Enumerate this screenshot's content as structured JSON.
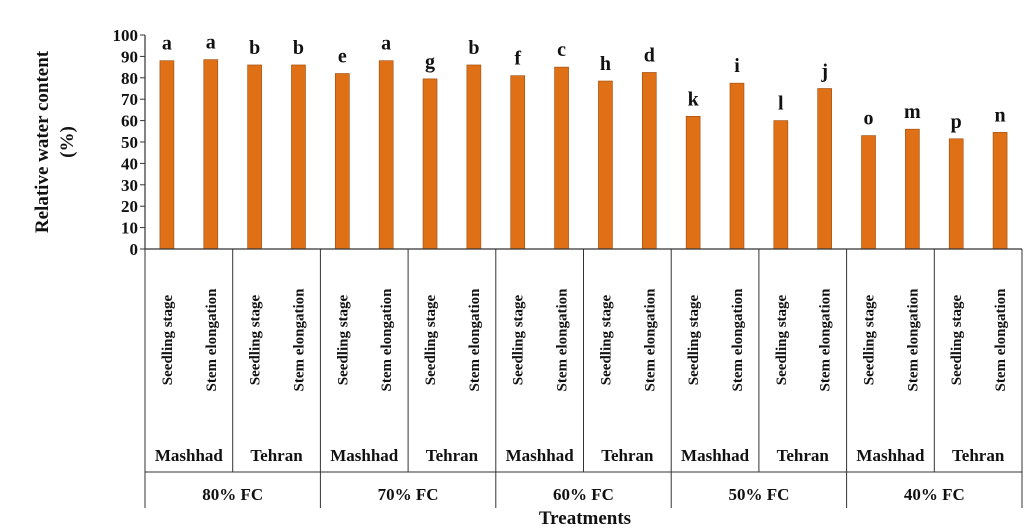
{
  "chart_data": {
    "type": "bar",
    "title": "",
    "ylabel": "Relative water content (%)",
    "xlabel": "Treatments",
    "ylim": [
      0,
      100
    ],
    "yticks": [
      0,
      10,
      20,
      30,
      40,
      50,
      60,
      70,
      80,
      90,
      100
    ],
    "grid": false,
    "legend": "none",
    "bar_color": "#e07016",
    "fc_levels": [
      "80% FC",
      "70% FC",
      "60% FC",
      "50% FC",
      "40% FC"
    ],
    "locations": [
      "Mashhad",
      "Tehran"
    ],
    "stages": [
      "Seedling stage",
      "Stem elongation"
    ],
    "values": [
      88,
      88.5,
      86,
      86,
      82,
      88,
      79.5,
      86,
      81,
      85,
      78.5,
      82.5,
      62,
      77.5,
      60,
      75,
      53,
      56,
      51.5,
      54.5
    ],
    "significance": [
      "a",
      "a",
      "b",
      "b",
      "e",
      "a",
      "g",
      "b",
      "f",
      "c",
      "h",
      "d",
      "k",
      "i",
      "l",
      "j",
      "o",
      "m",
      "p",
      "n"
    ]
  }
}
